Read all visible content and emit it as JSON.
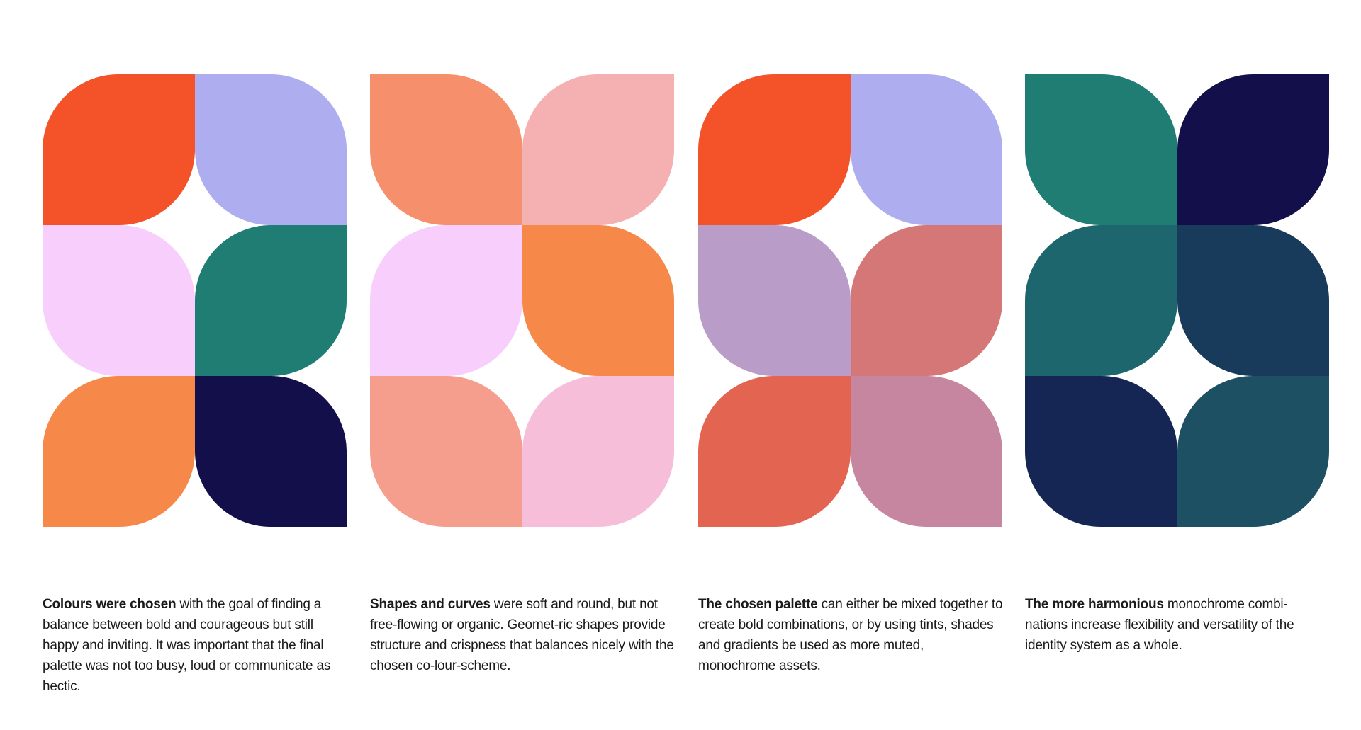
{
  "panels": [
    {
      "tiles": [
        "#F4532A",
        "#ADADF0",
        "#F8CEFC",
        "#207D74",
        "#F6884A",
        "#130F4A"
      ],
      "caption_bold": "Colours were chosen",
      "caption_text": " with the goal of finding a balance between bold and courageous but still happy and inviting. It was important that the final palette was not too busy, loud or communicate as hectic."
    },
    {
      "tiles": [
        "#F6906C",
        "#F5B0B2",
        "#F8CEFC",
        "#F6884A",
        "#F69E8E",
        "#F6BED8"
      ],
      "caption_bold": "Shapes and curves",
      "caption_text": " were soft and round, but not free-flowing or organic. Geomet-ric shapes provide structure and crispness that balances nicely with the chosen co-lour-scheme."
    },
    {
      "tiles": [
        "#F4532A",
        "#ADADF0",
        "#B99CC7",
        "#D57677",
        "#E26451",
        "#C6869F"
      ],
      "caption_bold": "The chosen palette",
      "caption_text": " can either be mixed together to create bold combinations, or by using tints, shades and gradients be used as more muted, monochrome assets."
    },
    {
      "tiles": [
        "#207D74",
        "#130F4A",
        "#1D666D",
        "#183A5B",
        "#152655",
        "#1C5062"
      ],
      "caption_bold": "The more harmonious",
      "caption_text": " monochrome combi-nations increase flexibility and versatility of the identity system as a whole."
    }
  ]
}
